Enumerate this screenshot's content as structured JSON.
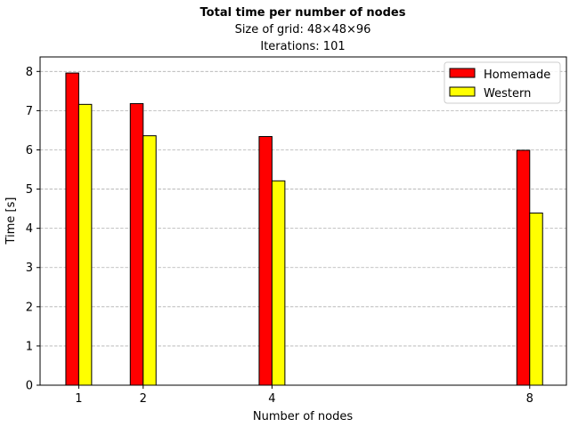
{
  "chart_data": {
    "type": "bar",
    "title": "Total time per number of nodes",
    "subtitle_lines": [
      "Size of grid: 48×48×96",
      "Iterations: 101"
    ],
    "xlabel": "Number of nodes",
    "ylabel": "Time [s]",
    "x": [
      1,
      2,
      4,
      8
    ],
    "xticks": [
      "1",
      "2",
      "4",
      "8"
    ],
    "xlim": [
      0.4,
      8.57
    ],
    "ylim": [
      0,
      8.37
    ],
    "yticks": [
      "0",
      "1",
      "2",
      "3",
      "4",
      "5",
      "6",
      "7",
      "8"
    ],
    "grid": "y-dashed",
    "legend_position": "top-right",
    "series": [
      {
        "name": "Homemade",
        "color": "#ff0000",
        "values": [
          7.96,
          7.18,
          6.34,
          5.99
        ]
      },
      {
        "name": "Western",
        "color": "#ffff00",
        "values": [
          7.16,
          6.36,
          5.21,
          4.39
        ]
      }
    ]
  }
}
